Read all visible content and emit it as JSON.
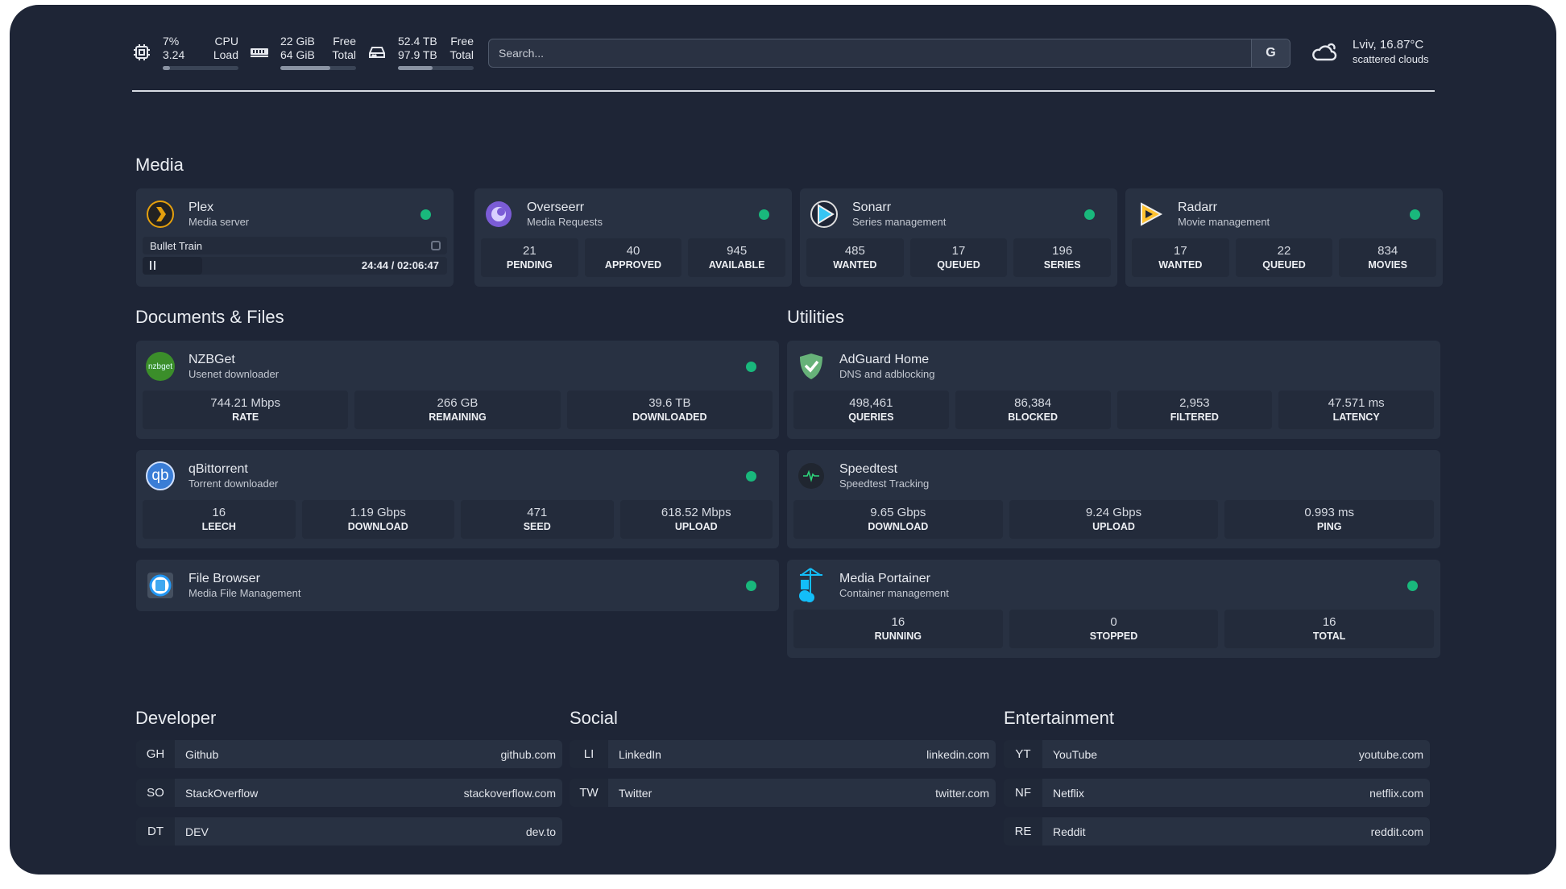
{
  "header": {
    "cpu": {
      "v1": "7%",
      "l1": "CPU",
      "v2": "3.24",
      "l2": "Load",
      "usage_percent": 7
    },
    "memory": {
      "v1": "22 GiB",
      "l1": "Free",
      "v2": "64 GiB",
      "l2": "Total",
      "usage_percent": 66
    },
    "disk": {
      "v1": "52.4 TB",
      "l1": "Free",
      "v2": "97.9 TB",
      "l2": "Total",
      "usage_percent": 46
    },
    "search": {
      "placeholder": "Search...",
      "button": "G"
    },
    "weather": {
      "location_temp": "Lviv, 16.87°C",
      "condition": "scattered clouds"
    }
  },
  "colors": {
    "status_online": "#19b87c",
    "background": "#1e2536",
    "card": "#283142"
  },
  "sections": {
    "media": "Media",
    "documents": "Documents & Files",
    "utilities": "Utilities",
    "developer": "Developer",
    "social": "Social",
    "entertainment": "Entertainment"
  },
  "plex": {
    "name": "Plex",
    "desc": "Media server",
    "now_playing": "Bullet Train",
    "time": "24:44 / 02:06:47",
    "progress_fraction": 0.195
  },
  "services": {
    "overseerr": {
      "name": "Overseerr",
      "desc": "Media Requests",
      "icon": "overseerr-icon",
      "stats": [
        {
          "v": "21",
          "l": "PENDING"
        },
        {
          "v": "40",
          "l": "APPROVED"
        },
        {
          "v": "945",
          "l": "AVAILABLE"
        }
      ]
    },
    "sonarr": {
      "name": "Sonarr",
      "desc": "Series management",
      "icon": "sonarr-icon",
      "stats": [
        {
          "v": "485",
          "l": "WANTED"
        },
        {
          "v": "17",
          "l": "QUEUED"
        },
        {
          "v": "196",
          "l": "SERIES"
        }
      ]
    },
    "radarr": {
      "name": "Radarr",
      "desc": "Movie management",
      "icon": "radarr-icon",
      "stats": [
        {
          "v": "17",
          "l": "WANTED"
        },
        {
          "v": "22",
          "l": "QUEUED"
        },
        {
          "v": "834",
          "l": "MOVIES"
        }
      ]
    },
    "nzbget": {
      "name": "NZBGet",
      "desc": "Usenet downloader",
      "icon": "nzbget-icon",
      "icon_text": "nzbget",
      "stats": [
        {
          "v": "744.21 Mbps",
          "l": "RATE"
        },
        {
          "v": "266 GB",
          "l": "REMAINING"
        },
        {
          "v": "39.6 TB",
          "l": "DOWNLOADED"
        }
      ]
    },
    "qbittorrent": {
      "name": "qBittorrent",
      "desc": "Torrent downloader",
      "icon": "qbittorrent-icon",
      "icon_text": "qb",
      "stats": [
        {
          "v": "16",
          "l": "LEECH"
        },
        {
          "v": "1.19 Gbps",
          "l": "DOWNLOAD"
        },
        {
          "v": "471",
          "l": "SEED"
        },
        {
          "v": "618.52 Mbps",
          "l": "UPLOAD"
        }
      ]
    },
    "filebrowser": {
      "name": "File Browser",
      "desc": "Media File Management",
      "icon": "filebrowser-icon",
      "stats": []
    },
    "adguard": {
      "name": "AdGuard Home",
      "desc": "DNS and adblocking",
      "icon": "adguard-icon",
      "nodot": true,
      "stats": [
        {
          "v": "498,461",
          "l": "QUERIES"
        },
        {
          "v": "86,384",
          "l": "BLOCKED"
        },
        {
          "v": "2,953",
          "l": "FILTERED"
        },
        {
          "v": "47.571 ms",
          "l": "LATENCY"
        }
      ]
    },
    "speedtest": {
      "name": "Speedtest",
      "desc": "Speedtest Tracking",
      "icon": "speedtest-icon",
      "nodot": true,
      "stats": [
        {
          "v": "9.65 Gbps",
          "l": "DOWNLOAD"
        },
        {
          "v": "9.24 Gbps",
          "l": "UPLOAD"
        },
        {
          "v": "0.993 ms",
          "l": "PING"
        }
      ]
    },
    "portainer": {
      "name": "Media Portainer",
      "desc": "Container management",
      "icon": "portainer-icon",
      "stats": [
        {
          "v": "16",
          "l": "RUNNING"
        },
        {
          "v": "0",
          "l": "STOPPED"
        },
        {
          "v": "16",
          "l": "TOTAL"
        }
      ]
    }
  },
  "bookmarks": {
    "developer": [
      {
        "abbr": "GH",
        "name": "Github",
        "url": "github.com"
      },
      {
        "abbr": "SO",
        "name": "StackOverflow",
        "url": "stackoverflow.com"
      },
      {
        "abbr": "DT",
        "name": "DEV",
        "url": "dev.to"
      }
    ],
    "social": [
      {
        "abbr": "LI",
        "name": "LinkedIn",
        "url": "linkedin.com"
      },
      {
        "abbr": "TW",
        "name": "Twitter",
        "url": "twitter.com"
      }
    ],
    "entertainment": [
      {
        "abbr": "YT",
        "name": "YouTube",
        "url": "youtube.com"
      },
      {
        "abbr": "NF",
        "name": "Netflix",
        "url": "netflix.com"
      },
      {
        "abbr": "RE",
        "name": "Reddit",
        "url": "reddit.com"
      }
    ]
  }
}
